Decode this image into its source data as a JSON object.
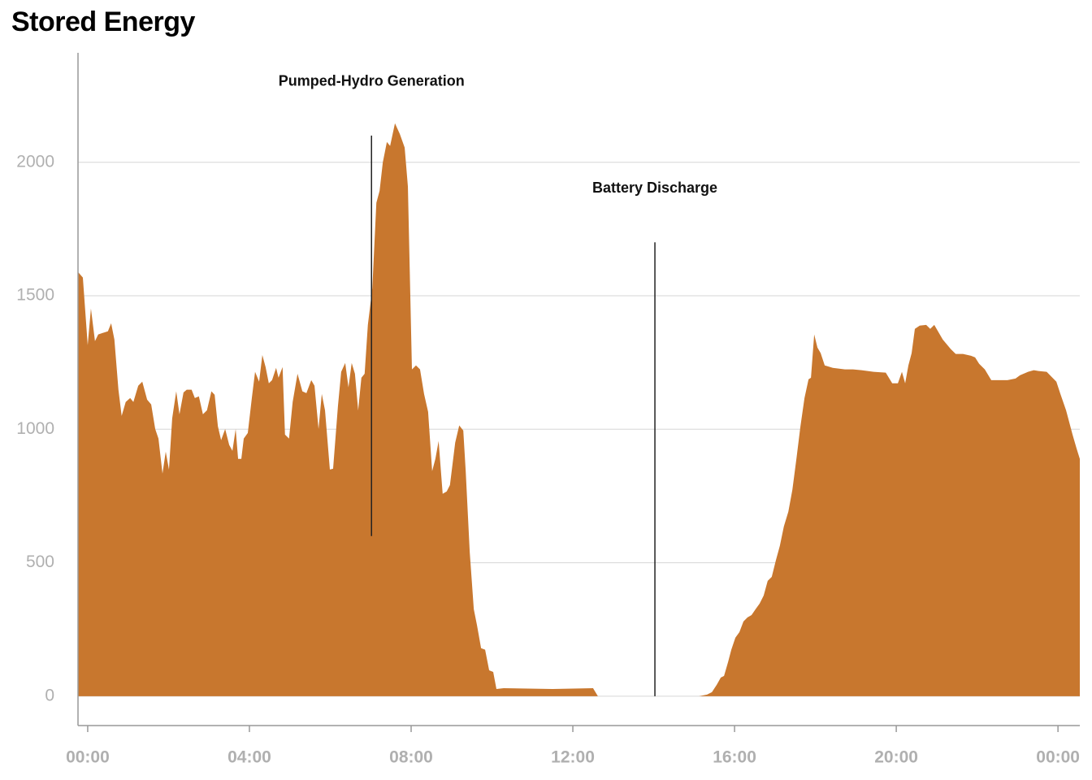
{
  "chart_data": {
    "type": "area",
    "title": "Stored Energy",
    "color": "#c8772e",
    "grid": true,
    "xlim": [
      -0.24,
      24.54
    ],
    "ylim": [
      -110,
      2410
    ],
    "xticks": [
      {
        "value": 0,
        "label": "00:00"
      },
      {
        "value": 4,
        "label": "04:00"
      },
      {
        "value": 8,
        "label": "08:00"
      },
      {
        "value": 12,
        "label": "12:00"
      },
      {
        "value": 16,
        "label": "16:00"
      },
      {
        "value": 20,
        "label": "20:00"
      },
      {
        "value": 24,
        "label": "00:00"
      }
    ],
    "yticks": [
      0,
      500,
      1000,
      1500,
      2000
    ],
    "annotations": [
      {
        "text": "Pumped-Hydro Generation",
        "x": 7.02,
        "y": [
          600,
          2100
        ]
      },
      {
        "text": "Battery Discharge",
        "x": 14.03,
        "y": [
          0,
          1700
        ]
      }
    ],
    "x": [
      -0.24,
      -0.12,
      0,
      0.08,
      0.18,
      0.26,
      0.38,
      0.5,
      0.58,
      0.66,
      0.76,
      0.84,
      0.94,
      1.05,
      1.13,
      1.25,
      1.35,
      1.47,
      1.57,
      1.67,
      1.75,
      1.85,
      1.93,
      2.01,
      2.09,
      2.19,
      2.27,
      2.37,
      2.45,
      2.57,
      2.65,
      2.75,
      2.85,
      2.95,
      3.06,
      3.14,
      3.22,
      3.3,
      3.4,
      3.5,
      3.58,
      3.66,
      3.72,
      3.8,
      3.86,
      3.96,
      4.06,
      4.14,
      4.24,
      4.32,
      4.4,
      4.48,
      4.56,
      4.66,
      4.72,
      4.82,
      4.88,
      4.98,
      5.07,
      5.19,
      5.31,
      5.41,
      5.53,
      5.61,
      5.71,
      5.79,
      5.87,
      5.99,
      6.07,
      6.19,
      6.27,
      6.37,
      6.45,
      6.53,
      6.61,
      6.69,
      6.77,
      6.85,
      6.93,
      7.04,
      7.14,
      7.22,
      7.3,
      7.4,
      7.48,
      7.6,
      7.72,
      7.84,
      7.92,
      8.02,
      8.12,
      8.22,
      8.32,
      8.42,
      8.52,
      8.6,
      8.68,
      8.78,
      8.88,
      8.96,
      9.09,
      9.19,
      9.29,
      9.35,
      9.45,
      9.55,
      9.63,
      9.73,
      9.83,
      9.93,
      10.03,
      10.11,
      10.29,
      11.5,
      12.5,
      12.62,
      13.91,
      15.12,
      15.32,
      15.44,
      15.56,
      15.66,
      15.74,
      15.84,
      15.92,
      16.02,
      16.12,
      16.22,
      16.32,
      16.42,
      16.52,
      16.62,
      16.72,
      16.82,
      16.92,
      17.02,
      17.12,
      17.22,
      17.33,
      17.43,
      17.53,
      17.63,
      17.73,
      17.83,
      17.89,
      17.97,
      18.05,
      18.13,
      18.23,
      18.43,
      18.73,
      18.93,
      19.14,
      19.44,
      19.74,
      19.9,
      20.04,
      20.14,
      20.22,
      20.3,
      20.38,
      20.46,
      20.58,
      20.74,
      20.84,
      20.94,
      21.15,
      21.35,
      21.47,
      21.65,
      21.85,
      21.95,
      22.05,
      22.19,
      22.35,
      22.45,
      22.75,
      22.95,
      23.06,
      23.26,
      23.4,
      23.52,
      23.72,
      23.96,
      24.06,
      24.2,
      24.36,
      24.46,
      24.54
    ],
    "values": [
      1589,
      1568,
      1315,
      1452,
      1330,
      1355,
      1361,
      1367,
      1397,
      1336,
      1148,
      1050,
      1102,
      1117,
      1102,
      1163,
      1178,
      1111,
      1093,
      1001,
      965,
      834,
      916,
      849,
      1041,
      1142,
      1056,
      1138,
      1148,
      1148,
      1117,
      1123,
      1056,
      1071,
      1142,
      1129,
      1011,
      959,
      1001,
      941,
      919,
      1001,
      889,
      889,
      965,
      986,
      1117,
      1215,
      1178,
      1278,
      1233,
      1172,
      1184,
      1230,
      1193,
      1233,
      980,
      965,
      1102,
      1208,
      1142,
      1135,
      1184,
      1163,
      1001,
      1132,
      1071,
      849,
      852,
      1087,
      1215,
      1248,
      1157,
      1248,
      1208,
      1071,
      1193,
      1208,
      1391,
      1528,
      1848,
      1893,
      2000,
      2076,
      2061,
      2146,
      2106,
      2055,
      1909,
      1224,
      1239,
      1224,
      1132,
      1065,
      843,
      889,
      956,
      758,
      767,
      791,
      950,
      1014,
      995,
      843,
      539,
      326,
      265,
      180,
      174,
      97,
      91,
      27,
      30,
      27,
      30,
      0,
      0,
      0,
      6,
      15,
      43,
      70,
      76,
      128,
      174,
      219,
      240,
      280,
      295,
      304,
      326,
      347,
      377,
      432,
      447,
      508,
      563,
      636,
      691,
      773,
      889,
      1011,
      1117,
      1187,
      1193,
      1355,
      1306,
      1285,
      1239,
      1230,
      1224,
      1224,
      1221,
      1215,
      1212,
      1172,
      1172,
      1215,
      1172,
      1239,
      1285,
      1376,
      1388,
      1391,
      1376,
      1391,
      1336,
      1300,
      1282,
      1282,
      1275,
      1269,
      1245,
      1224,
      1184,
      1184,
      1184,
      1190,
      1202,
      1215,
      1221,
      1218,
      1215,
      1178,
      1132,
      1071,
      980,
      928,
      889
    ]
  }
}
